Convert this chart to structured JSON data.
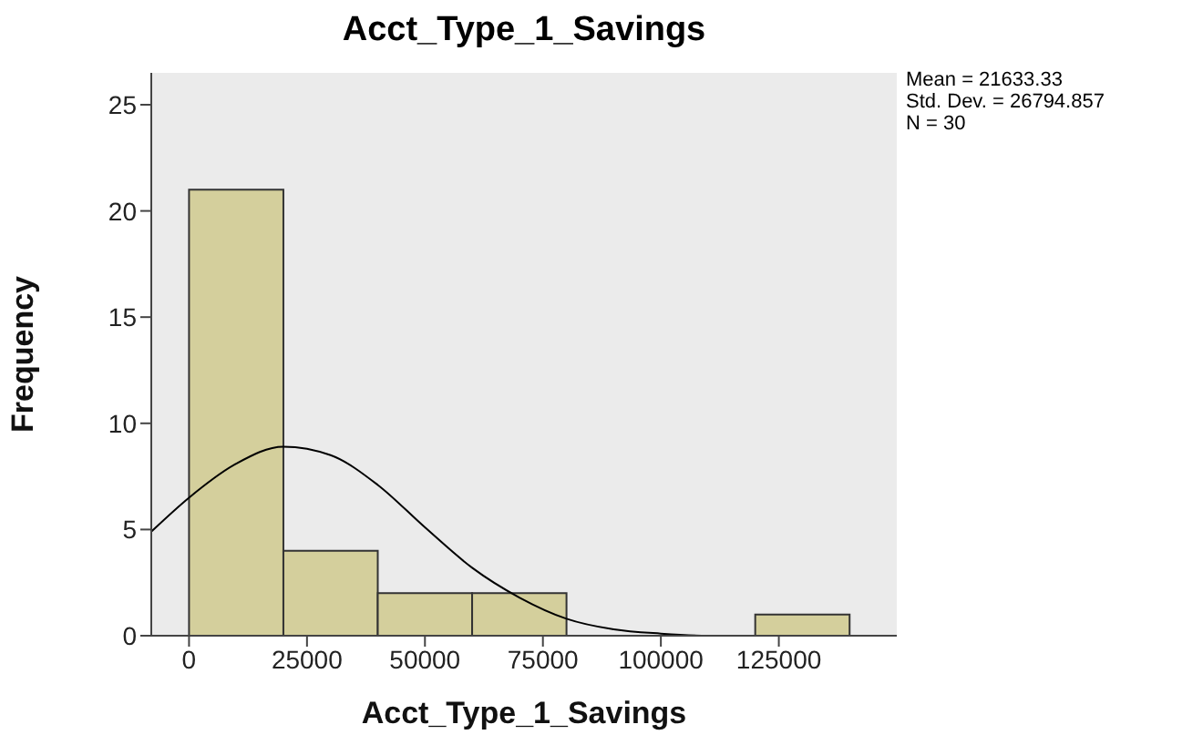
{
  "chart_data": {
    "type": "histogram",
    "title": "Acct_Type_1_Savings",
    "xlabel": "Acct_Type_1_Savings",
    "ylabel": "Frequency",
    "bins": [
      0,
      20000,
      40000,
      60000,
      80000,
      100000,
      120000,
      140000
    ],
    "values": [
      21,
      4,
      2,
      2,
      0,
      0,
      1
    ],
    "color": "#d4cf9c",
    "series": [
      {
        "type": "line",
        "color": "#000000",
        "x": [
          -8000,
          0,
          10000,
          20000,
          30000,
          40000,
          50000,
          60000,
          70000,
          80000,
          90000,
          100000,
          110000,
          120000,
          130000
        ],
        "values": [
          4.9,
          6.5,
          8.1,
          8.9,
          8.5,
          7.1,
          5.1,
          3.2,
          1.8,
          0.8,
          0.3,
          0.1,
          0,
          0,
          0
        ]
      }
    ],
    "xlim": [
      -8000,
      150000
    ],
    "xticks": [
      0,
      25000,
      50000,
      75000,
      100000,
      125000
    ],
    "ylim": [
      0,
      26.5
    ],
    "yticks": [
      0,
      5,
      10,
      15,
      20,
      25
    ],
    "annotations": [
      "Mean = 21633.33",
      "Std. Dev. = 26794.857",
      "N = 30"
    ],
    "grid": false,
    "marker": "none"
  }
}
